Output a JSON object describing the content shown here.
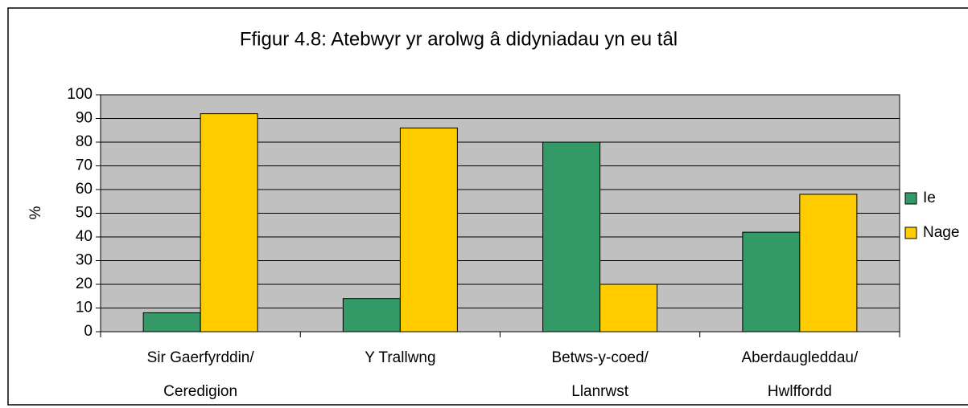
{
  "chart_data": {
    "type": "bar",
    "title": "Ffigur 4.8: Atebwyr yr arolwg â didyniadau yn eu tâl",
    "y_label": "%",
    "categories": [
      [
        "Sir Gaerfyrddin/",
        "Ceredigion"
      ],
      [
        "Y Trallwng"
      ],
      [
        "Betws-y-coed/",
        "Llanrwst"
      ],
      [
        "Aberdaugleddau/",
        "Hwlffordd"
      ]
    ],
    "series": [
      {
        "name": "Ie",
        "color": "#339966",
        "values": [
          8,
          14,
          80,
          42
        ]
      },
      {
        "name": "Nage",
        "color": "#ffcc00",
        "values": [
          92,
          86,
          20,
          58
        ]
      }
    ],
    "ylim": [
      0,
      100
    ],
    "yticks": [
      0,
      10,
      20,
      30,
      40,
      50,
      60,
      70,
      80,
      90,
      100
    ],
    "grid": true,
    "legend": "right",
    "plot_background": "#c0c0c0"
  }
}
